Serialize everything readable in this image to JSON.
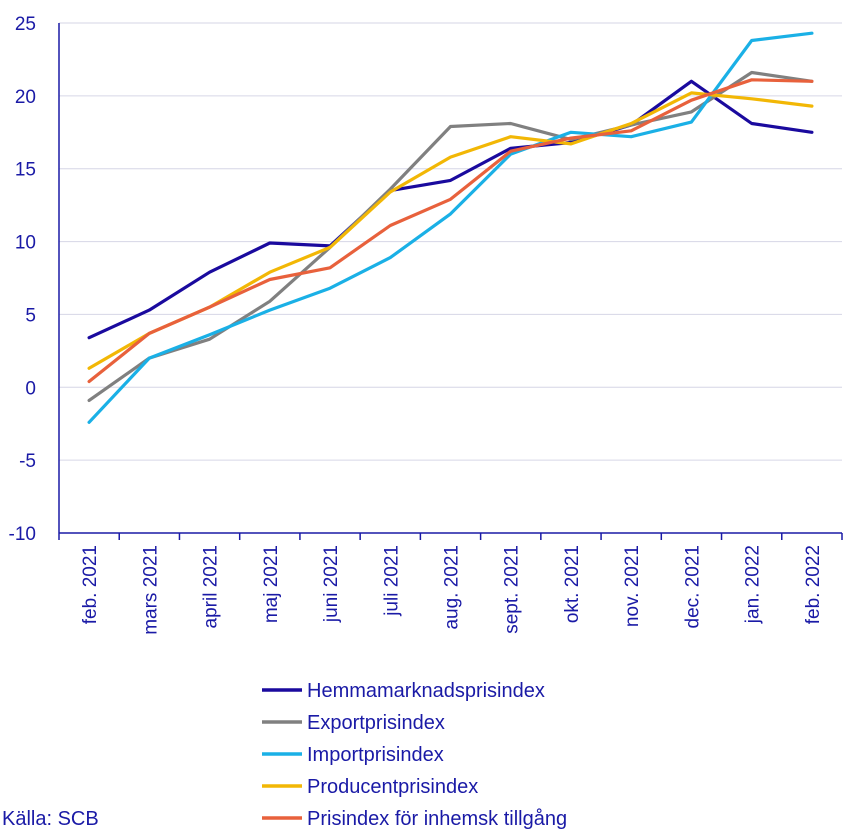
{
  "chart_data": {
    "type": "line",
    "title": "",
    "xlabel": "",
    "ylabel": "",
    "ylim": [
      -10,
      25
    ],
    "yticks": [
      25,
      20,
      15,
      10,
      5,
      0,
      -5,
      -10
    ],
    "grid": true,
    "legend_position": "bottom",
    "categories": [
      "feb. 2021",
      "mars 2021",
      "april 2021",
      "maj 2021",
      "juni 2021",
      "juli 2021",
      "aug. 2021",
      "sept. 2021",
      "okt. 2021",
      "nov. 2021",
      "dec. 2021",
      "jan. 2022",
      "feb. 2022"
    ],
    "series": [
      {
        "name": "Hemmamarknadsprisindex",
        "color": "#1a0a9e",
        "values": [
          3.4,
          5.3,
          7.9,
          9.9,
          9.7,
          13.5,
          14.2,
          16.4,
          16.8,
          18.0,
          21.0,
          18.1,
          17.5
        ]
      },
      {
        "name": "Exportprisindex",
        "color": "#808080",
        "values": [
          -0.9,
          2.0,
          3.3,
          5.9,
          9.6,
          13.6,
          17.9,
          18.1,
          17.0,
          18.0,
          18.9,
          21.6,
          21.0
        ]
      },
      {
        "name": "Importprisindex",
        "color": "#1ab0e6",
        "values": [
          -2.4,
          2.0,
          3.6,
          5.3,
          6.8,
          8.9,
          11.9,
          16.0,
          17.5,
          17.2,
          18.2,
          23.8,
          24.3
        ]
      },
      {
        "name": "Producentprisindex",
        "color": "#f2b705",
        "values": [
          1.3,
          3.7,
          5.5,
          7.9,
          9.6,
          13.4,
          15.8,
          17.2,
          16.7,
          18.1,
          20.2,
          19.8,
          19.3
        ]
      },
      {
        "name": "Prisindex för inhemsk tillgång",
        "color": "#e8613c",
        "values": [
          0.4,
          3.7,
          5.5,
          7.4,
          8.2,
          11.1,
          12.9,
          16.2,
          17.1,
          17.6,
          19.7,
          21.1,
          21.0
        ]
      }
    ]
  },
  "source": "Källa: SCB"
}
